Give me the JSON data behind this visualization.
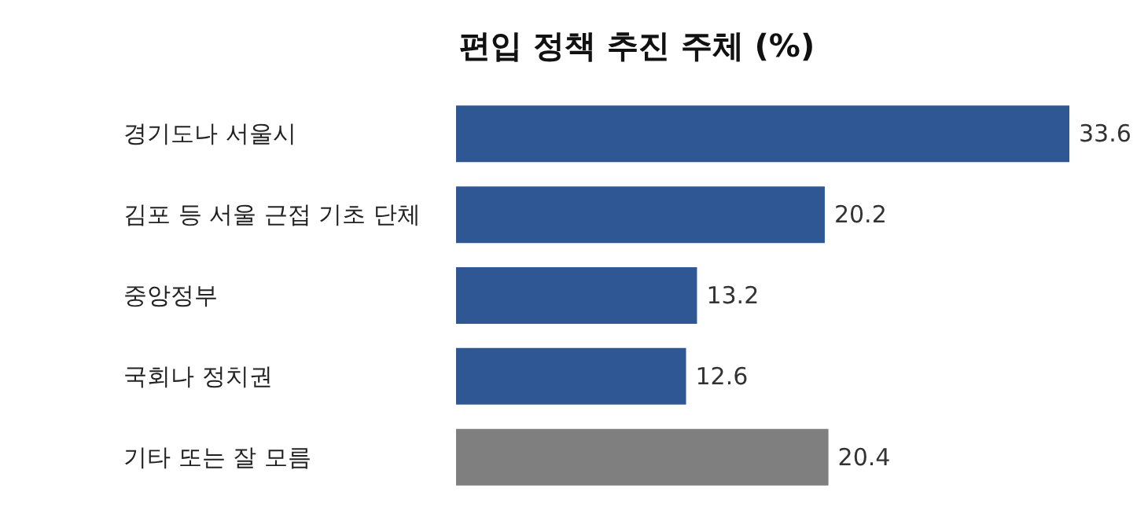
{
  "chart_data": {
    "type": "bar",
    "orientation": "horizontal",
    "title": "편입 정책 추진 주체 (%)",
    "categories": [
      "경기도나 서울시",
      "김포 등 서울 근접 기초 단체",
      "중앙정부",
      "국회나 정치권",
      "기타 또는 잘 모름"
    ],
    "values": [
      33.6,
      20.2,
      13.2,
      12.6,
      20.4
    ],
    "colors": [
      "#2e5793",
      "#2e5793",
      "#2e5793",
      "#2e5793",
      "#7f7f7f"
    ],
    "data_labels": true,
    "tick_labels": "y"
  }
}
